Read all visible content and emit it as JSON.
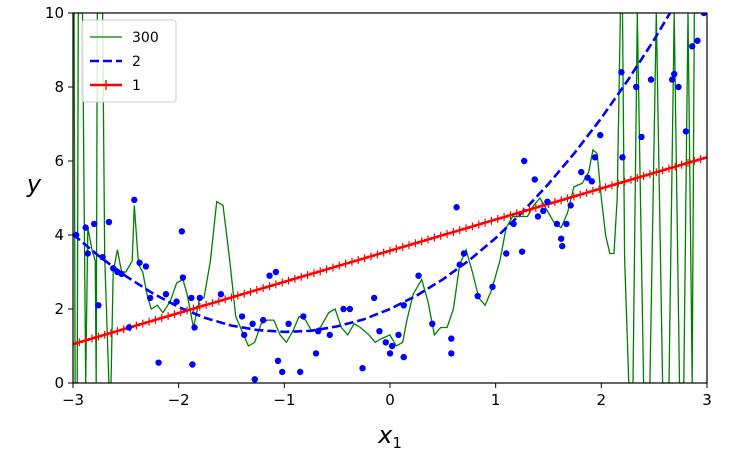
{
  "chart_data": {
    "type": "scatter",
    "title": "",
    "xlabel": "x",
    "xlabel_subscript": "1",
    "ylabel": "y",
    "xlim": [
      -3,
      3
    ],
    "ylim": [
      0,
      10
    ],
    "xticks": [
      -3,
      -2,
      -1,
      0,
      1,
      2,
      3
    ],
    "xtick_labels": [
      "−3",
      "−2",
      "−1",
      "0",
      "1",
      "2",
      "3"
    ],
    "yticks": [
      0,
      2,
      4,
      6,
      8,
      10
    ],
    "ytick_labels": [
      "0",
      "2",
      "4",
      "6",
      "8",
      "10"
    ],
    "grid": false,
    "legend_position": "top-left",
    "colors": {
      "points": "#0000ff",
      "degree300": "#008000",
      "degree2": "#0000ff",
      "degree1": "#ff0000"
    },
    "legend": [
      {
        "label": "300",
        "style": "green-solid"
      },
      {
        "label": "2",
        "style": "blue-dashed"
      },
      {
        "label": "1",
        "style": "red-plus"
      }
    ],
    "scatter_points": [
      [
        -2.97,
        4.0
      ],
      [
        -2.88,
        4.2
      ],
      [
        -2.86,
        3.5
      ],
      [
        -2.8,
        4.3
      ],
      [
        -2.76,
        2.1
      ],
      [
        -2.72,
        3.4
      ],
      [
        -2.66,
        4.35
      ],
      [
        -2.62,
        3.1
      ],
      [
        -2.58,
        3.0
      ],
      [
        -2.54,
        2.95
      ],
      [
        -2.47,
        1.5
      ],
      [
        -2.42,
        4.95
      ],
      [
        -2.37,
        3.25
      ],
      [
        -2.31,
        3.15
      ],
      [
        -2.27,
        2.3
      ],
      [
        -2.19,
        0.55
      ],
      [
        -2.12,
        2.4
      ],
      [
        -2.02,
        2.2
      ],
      [
        -1.97,
        4.1
      ],
      [
        -1.96,
        2.85
      ],
      [
        -1.88,
        2.3
      ],
      [
        -1.87,
        0.5
      ],
      [
        -1.85,
        1.5
      ],
      [
        -1.8,
        2.3
      ],
      [
        -1.6,
        2.4
      ],
      [
        -1.4,
        1.8
      ],
      [
        -1.38,
        1.3
      ],
      [
        -1.3,
        1.6
      ],
      [
        -1.28,
        0.1
      ],
      [
        -1.2,
        1.7
      ],
      [
        -1.14,
        2.9
      ],
      [
        -1.08,
        3.0
      ],
      [
        -1.06,
        0.6
      ],
      [
        -1.02,
        0.3
      ],
      [
        -0.96,
        1.6
      ],
      [
        -0.85,
        0.3
      ],
      [
        -0.82,
        1.8
      ],
      [
        -0.7,
        0.8
      ],
      [
        -0.68,
        1.4
      ],
      [
        -0.57,
        1.3
      ],
      [
        -0.44,
        2.0
      ],
      [
        -0.38,
        2.0
      ],
      [
        -0.26,
        0.4
      ],
      [
        -0.15,
        2.3
      ],
      [
        -0.1,
        1.4
      ],
      [
        -0.04,
        1.1
      ],
      [
        0.0,
        0.8
      ],
      [
        0.02,
        1.0
      ],
      [
        0.08,
        1.3
      ],
      [
        0.13,
        0.7
      ],
      [
        0.13,
        2.1
      ],
      [
        0.27,
        2.9
      ],
      [
        0.4,
        1.6
      ],
      [
        0.58,
        1.2
      ],
      [
        0.58,
        0.8
      ],
      [
        0.63,
        4.75
      ],
      [
        0.66,
        3.2
      ],
      [
        0.7,
        3.5
      ],
      [
        0.83,
        2.35
      ],
      [
        0.97,
        2.6
      ],
      [
        1.1,
        3.5
      ],
      [
        1.17,
        4.3
      ],
      [
        1.25,
        3.55
      ],
      [
        1.27,
        6.0
      ],
      [
        1.37,
        5.5
      ],
      [
        1.4,
        4.5
      ],
      [
        1.45,
        4.65
      ],
      [
        1.49,
        4.9
      ],
      [
        1.58,
        4.3
      ],
      [
        1.62,
        3.9
      ],
      [
        1.63,
        3.7
      ],
      [
        1.67,
        4.3
      ],
      [
        1.71,
        4.8
      ],
      [
        1.81,
        5.7
      ],
      [
        1.87,
        5.55
      ],
      [
        1.91,
        5.45
      ],
      [
        1.94,
        6.1
      ],
      [
        1.99,
        6.7
      ],
      [
        2.19,
        8.4
      ],
      [
        2.2,
        6.1
      ],
      [
        2.33,
        8.0
      ],
      [
        2.38,
        6.65
      ],
      [
        2.47,
        8.2
      ],
      [
        2.67,
        8.2
      ],
      [
        2.69,
        8.35
      ],
      [
        2.73,
        8.0
      ],
      [
        2.8,
        6.8
      ],
      [
        2.86,
        9.1
      ],
      [
        2.91,
        9.25
      ],
      [
        2.97,
        10.0
      ]
    ],
    "series": [
      {
        "name": "300",
        "type": "line",
        "points": [
          [
            -2.99,
            10
          ],
          [
            -2.98,
            0
          ],
          [
            -2.96,
            0
          ],
          [
            -2.95,
            10
          ],
          [
            -2.93,
            10
          ],
          [
            -2.91,
            10
          ],
          [
            -2.88,
            0
          ],
          [
            -2.86,
            4.2
          ],
          [
            -2.82,
            3.6
          ],
          [
            -2.79,
            3.3
          ],
          [
            -2.78,
            0
          ],
          [
            -2.77,
            10
          ],
          [
            -2.72,
            10
          ],
          [
            -2.7,
            3.4
          ],
          [
            -2.66,
            0
          ],
          [
            -2.64,
            0
          ],
          [
            -2.62,
            3.0
          ],
          [
            -2.58,
            3.6
          ],
          [
            -2.54,
            3.0
          ],
          [
            -2.5,
            3.0
          ],
          [
            -2.44,
            3.3
          ],
          [
            -2.42,
            4.8
          ],
          [
            -2.38,
            3.2
          ],
          [
            -2.34,
            3.0
          ],
          [
            -2.3,
            2.4
          ],
          [
            -2.26,
            2.0
          ],
          [
            -2.2,
            2.1
          ],
          [
            -2.15,
            1.9
          ],
          [
            -2.08,
            2.2
          ],
          [
            -2.02,
            2.7
          ],
          [
            -1.96,
            2.8
          ],
          [
            -1.92,
            2.4
          ],
          [
            -1.86,
            1.5
          ],
          [
            -1.8,
            2.3
          ],
          [
            -1.76,
            2.3
          ],
          [
            -1.7,
            3.3
          ],
          [
            -1.64,
            4.9
          ],
          [
            -1.58,
            4.8
          ],
          [
            -1.52,
            3.4
          ],
          [
            -1.46,
            1.8
          ],
          [
            -1.4,
            1.4
          ],
          [
            -1.34,
            1.0
          ],
          [
            -1.28,
            1.1
          ],
          [
            -1.22,
            1.6
          ],
          [
            -1.16,
            1.7
          ],
          [
            -1.1,
            1.7
          ],
          [
            -1.04,
            1.3
          ],
          [
            -0.98,
            1.1
          ],
          [
            -0.92,
            1.4
          ],
          [
            -0.86,
            1.8
          ],
          [
            -0.8,
            1.7
          ],
          [
            -0.74,
            1.4
          ],
          [
            -0.66,
            1.5
          ],
          [
            -0.58,
            1.9
          ],
          [
            -0.52,
            2.0
          ],
          [
            -0.46,
            1.5
          ],
          [
            -0.4,
            1.3
          ],
          [
            -0.34,
            1.6
          ],
          [
            -0.28,
            1.5
          ],
          [
            -0.2,
            1.3
          ],
          [
            -0.14,
            1.1
          ],
          [
            -0.08,
            1.2
          ],
          [
            0.0,
            1.3
          ],
          [
            0.06,
            1.0
          ],
          [
            0.12,
            1.1
          ],
          [
            0.16,
            1.7
          ],
          [
            0.22,
            2.4
          ],
          [
            0.3,
            2.8
          ],
          [
            0.36,
            2.2
          ],
          [
            0.42,
            1.3
          ],
          [
            0.48,
            1.5
          ],
          [
            0.54,
            1.5
          ],
          [
            0.6,
            2.0
          ],
          [
            0.66,
            3.2
          ],
          [
            0.72,
            3.6
          ],
          [
            0.78,
            3.0
          ],
          [
            0.84,
            2.3
          ],
          [
            0.9,
            2.1
          ],
          [
            0.96,
            2.5
          ],
          [
            1.04,
            3.3
          ],
          [
            1.1,
            4.2
          ],
          [
            1.16,
            4.5
          ],
          [
            1.22,
            4.5
          ],
          [
            1.3,
            4.5
          ],
          [
            1.36,
            4.8
          ],
          [
            1.42,
            5.0
          ],
          [
            1.5,
            4.6
          ],
          [
            1.56,
            4.3
          ],
          [
            1.62,
            4.2
          ],
          [
            1.68,
            4.6
          ],
          [
            1.74,
            5.3
          ],
          [
            1.82,
            5.4
          ],
          [
            1.88,
            5.7
          ],
          [
            1.92,
            6.3
          ],
          [
            1.96,
            6.2
          ],
          [
            2.0,
            5.0
          ],
          [
            2.04,
            4.0
          ],
          [
            2.08,
            3.5
          ],
          [
            2.12,
            3.5
          ],
          [
            2.15,
            5.0
          ],
          [
            2.18,
            10
          ],
          [
            2.2,
            10
          ],
          [
            2.22,
            3.4
          ],
          [
            2.26,
            0
          ],
          [
            2.3,
            0
          ],
          [
            2.34,
            10
          ],
          [
            2.4,
            0
          ],
          [
            2.46,
            0
          ],
          [
            2.52,
            10
          ],
          [
            2.58,
            0
          ],
          [
            2.64,
            0
          ],
          [
            2.69,
            10
          ],
          [
            2.74,
            0
          ],
          [
            2.78,
            0
          ],
          [
            2.82,
            10
          ],
          [
            2.86,
            0
          ],
          [
            2.88,
            10
          ],
          [
            2.92,
            10
          ]
        ]
      },
      {
        "name": "2",
        "type": "line",
        "points": [
          [
            -3.0,
            4.02
          ],
          [
            -2.75,
            3.42
          ],
          [
            -2.5,
            2.89
          ],
          [
            -2.25,
            2.43
          ],
          [
            -2.0,
            2.05
          ],
          [
            -1.75,
            1.76
          ],
          [
            -1.5,
            1.55
          ],
          [
            -1.25,
            1.43
          ],
          [
            -1.0,
            1.38
          ],
          [
            -0.75,
            1.41
          ],
          [
            -0.5,
            1.53
          ],
          [
            -0.25,
            1.72
          ],
          [
            0.0,
            2.0
          ],
          [
            0.25,
            2.36
          ],
          [
            0.5,
            2.8
          ],
          [
            0.75,
            3.32
          ],
          [
            1.0,
            3.92
          ],
          [
            1.25,
            4.61
          ],
          [
            1.5,
            5.38
          ],
          [
            1.75,
            6.23
          ],
          [
            2.0,
            7.16
          ],
          [
            2.25,
            8.18
          ],
          [
            2.5,
            9.28
          ],
          [
            2.65,
            10.0
          ]
        ]
      },
      {
        "name": "1",
        "type": "line",
        "points": [
          [
            -3.0,
            1.05
          ],
          [
            3.0,
            6.1
          ]
        ]
      }
    ]
  }
}
